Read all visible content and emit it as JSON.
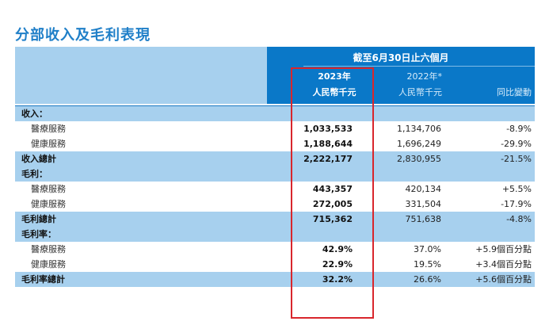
{
  "title": "分部收入及毛利表現",
  "header": {
    "period": "截至6月30日止六個月",
    "col_2023_year": "2023年",
    "col_2023_unit": "人民幣千元",
    "col_2022_year": "2022年*",
    "col_2022_unit": "人民幣千元",
    "col_change": "同比變動"
  },
  "rows": [
    {
      "label": "收入：",
      "kind": "head",
      "v2023": "",
      "v2022": "",
      "change": ""
    },
    {
      "label": "醫療服務",
      "kind": "item",
      "v2023": "1,033,533",
      "v2022": "1,134,706",
      "change": "-8.9%"
    },
    {
      "label": "健康服務",
      "kind": "item",
      "v2023": "1,188,644",
      "v2022": "1,696,249",
      "change": "-29.9%"
    },
    {
      "label": "收入總計",
      "kind": "total",
      "v2023": "2,222,177",
      "v2022": "2,830,955",
      "change": "-21.5%"
    },
    {
      "label": "毛利：",
      "kind": "head",
      "v2023": "",
      "v2022": "",
      "change": ""
    },
    {
      "label": "醫療服務",
      "kind": "item",
      "v2023": "443,357",
      "v2022": "420,134",
      "change": "+5.5%"
    },
    {
      "label": "健康服務",
      "kind": "item",
      "v2023": "272,005",
      "v2022": "331,504",
      "change": "-17.9%"
    },
    {
      "label": "毛利總計",
      "kind": "total",
      "v2023": "715,362",
      "v2022": "751,638",
      "change": "-4.8%"
    },
    {
      "label": "毛利率：",
      "kind": "head",
      "v2023": "",
      "v2022": "",
      "change": ""
    },
    {
      "label": "醫療服務",
      "kind": "item",
      "v2023": "42.9%",
      "v2022": "37.0%",
      "change": "+5.9個百分點"
    },
    {
      "label": "健康服務",
      "kind": "item",
      "v2023": "22.9%",
      "v2022": "19.5%",
      "change": "+3.4個百分點"
    },
    {
      "label": "毛利率總計",
      "kind": "total",
      "v2023": "32.2%",
      "v2022": "26.6%",
      "change": "+5.6個百分點"
    }
  ],
  "colors": {
    "accent": "#0a78c8",
    "shade": "#a7d0ee",
    "highlight_box": "#d9262c"
  }
}
